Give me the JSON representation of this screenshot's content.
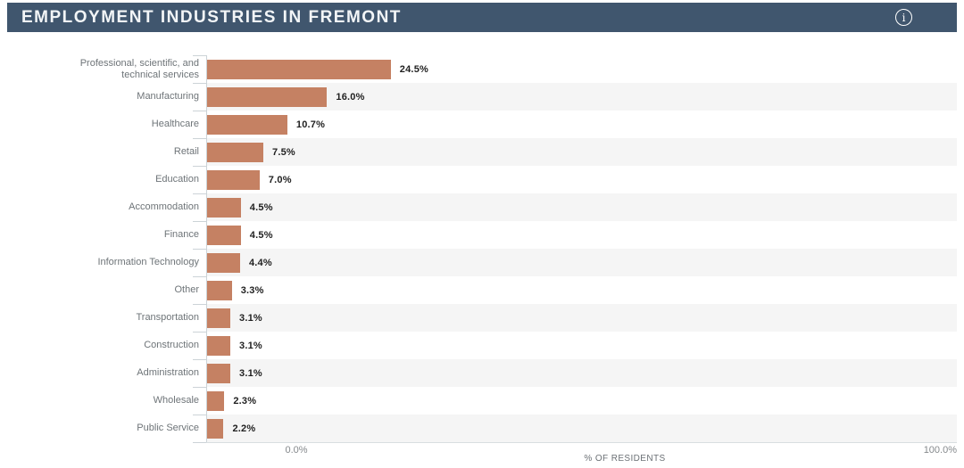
{
  "header": {
    "title": "EMPLOYMENT INDUSTRIES IN FREMONT",
    "info_icon_glyph": "i"
  },
  "axis": {
    "x_min_label": "0.0%",
    "x_max_label": "100.0%",
    "xlabel": "% OF RESIDENTS"
  },
  "colors": {
    "header_bg": "#40566e",
    "header_text": "#f2f5f7",
    "bar": "#c58163",
    "row_stripe": "#f5f5f5",
    "axis_line": "#ccd3d7",
    "category_label": "#6e7478",
    "value_label": "#1f1f1f",
    "tick_label": "#85898c"
  },
  "chart_data": {
    "type": "bar",
    "orientation": "horizontal",
    "title": "EMPLOYMENT INDUSTRIES IN FREMONT",
    "xlabel": "% OF RESIDENTS",
    "xlim": [
      0,
      100
    ],
    "x_ticks": [
      "0.0%",
      "100.0%"
    ],
    "grid": false,
    "legend": false,
    "bar_color": "#c58163",
    "striped_rows": "even rows (2nd, 4th, ...) have light gray background",
    "categories": [
      "Professional, scientific, and\ntechnical services",
      "Manufacturing",
      "Healthcare",
      "Retail",
      "Education",
      "Accommodation",
      "Finance",
      "Information Technology",
      "Other",
      "Transportation",
      "Construction",
      "Administration",
      "Wholesale",
      "Public Service"
    ],
    "values": [
      24.5,
      16.0,
      10.7,
      7.5,
      7.0,
      4.5,
      4.5,
      4.4,
      3.3,
      3.1,
      3.1,
      3.1,
      2.3,
      2.2
    ],
    "value_labels": [
      "24.5%",
      "16.0%",
      "10.7%",
      "7.5%",
      "7.0%",
      "4.5%",
      "4.5%",
      "4.4%",
      "3.3%",
      "3.1%",
      "3.1%",
      "3.1%",
      "2.3%",
      "2.2%"
    ]
  }
}
